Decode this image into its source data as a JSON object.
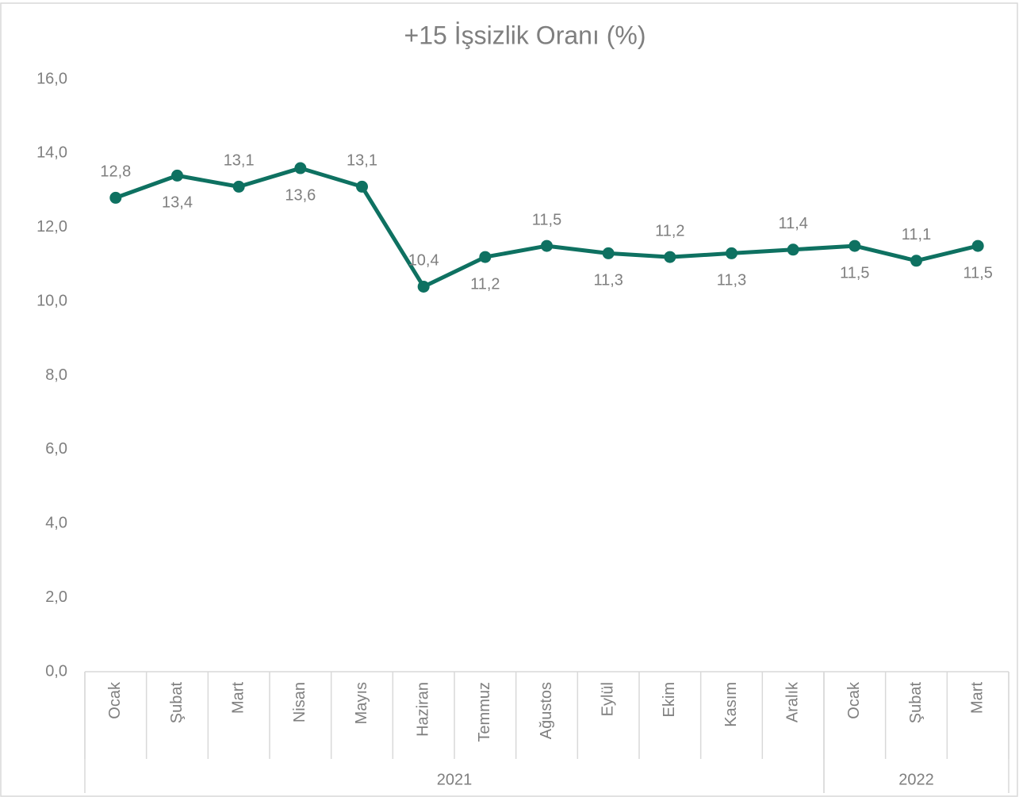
{
  "chart_data": {
    "type": "line",
    "title": "+15 İşsizlik Oranı (%)",
    "categories": [
      "Ocak",
      "Şubat",
      "Mart",
      "Nisan",
      "Mayıs",
      "Haziran",
      "Temmuz",
      "Ağustos",
      "Eylül",
      "Ekim",
      "Kasım",
      "Aralık",
      "Ocak",
      "Şubat",
      "Mart"
    ],
    "groups": [
      {
        "label": "2021",
        "span": 12
      },
      {
        "label": "2022",
        "span": 3
      }
    ],
    "series": [
      {
        "name": "+15 İşsizlik Oranı (%)",
        "color": "#0e7161",
        "values": [
          12.8,
          13.4,
          13.1,
          13.6,
          13.1,
          10.4,
          11.2,
          11.5,
          11.3,
          11.2,
          11.3,
          11.4,
          11.5,
          11.1,
          11.5
        ],
        "value_labels": [
          "12,8",
          "13,4",
          "13,1",
          "13,6",
          "13,1",
          "10,4",
          "11,2",
          "11,5",
          "11,3",
          "11,2",
          "11,3",
          "11,4",
          "11,5",
          "11,1",
          "11,5"
        ]
      }
    ],
    "ylim": [
      0,
      16
    ],
    "yticks": [
      {
        "value": 0,
        "label": "0,0"
      },
      {
        "value": 2,
        "label": "2,0"
      },
      {
        "value": 4,
        "label": "4,0"
      },
      {
        "value": 6,
        "label": "6,0"
      },
      {
        "value": 8,
        "label": "8,0"
      },
      {
        "value": 10,
        "label": "10,0"
      },
      {
        "value": 12,
        "label": "12,0"
      },
      {
        "value": 14,
        "label": "14,0"
      },
      {
        "value": 16,
        "label": "16,0"
      }
    ],
    "grid": false
  }
}
